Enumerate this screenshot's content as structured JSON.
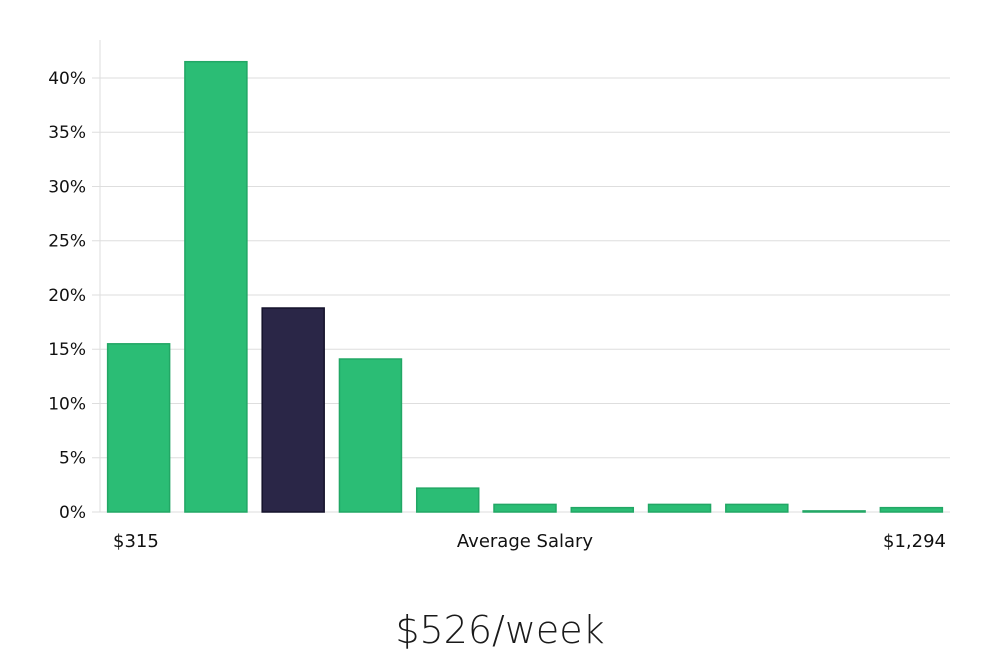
{
  "chart_data": {
    "type": "bar",
    "xlabel": "Average Salary",
    "x_range_labels": {
      "min": "$315",
      "max": "$1,294"
    },
    "ylabel": "",
    "ylim": [
      0,
      43.5
    ],
    "y_ticks": [
      0,
      5,
      10,
      15,
      20,
      25,
      30,
      35,
      40
    ],
    "y_tick_labels": [
      "0%",
      "5%",
      "10%",
      "15%",
      "20%",
      "25%",
      "30%",
      "35%",
      "40%"
    ],
    "grid": true,
    "values": [
      15.5,
      41.5,
      18.8,
      14.1,
      2.2,
      0.7,
      0.4,
      0.7,
      0.7,
      0.1,
      0.4
    ],
    "highlight_index": 2,
    "colors": {
      "bar": "#2bbd75",
      "bar_border": "#22a765",
      "highlight": "#2a2647",
      "highlight_border": "#14122b",
      "grid": "#dedede"
    }
  },
  "summary": {
    "text": "$526/week"
  }
}
